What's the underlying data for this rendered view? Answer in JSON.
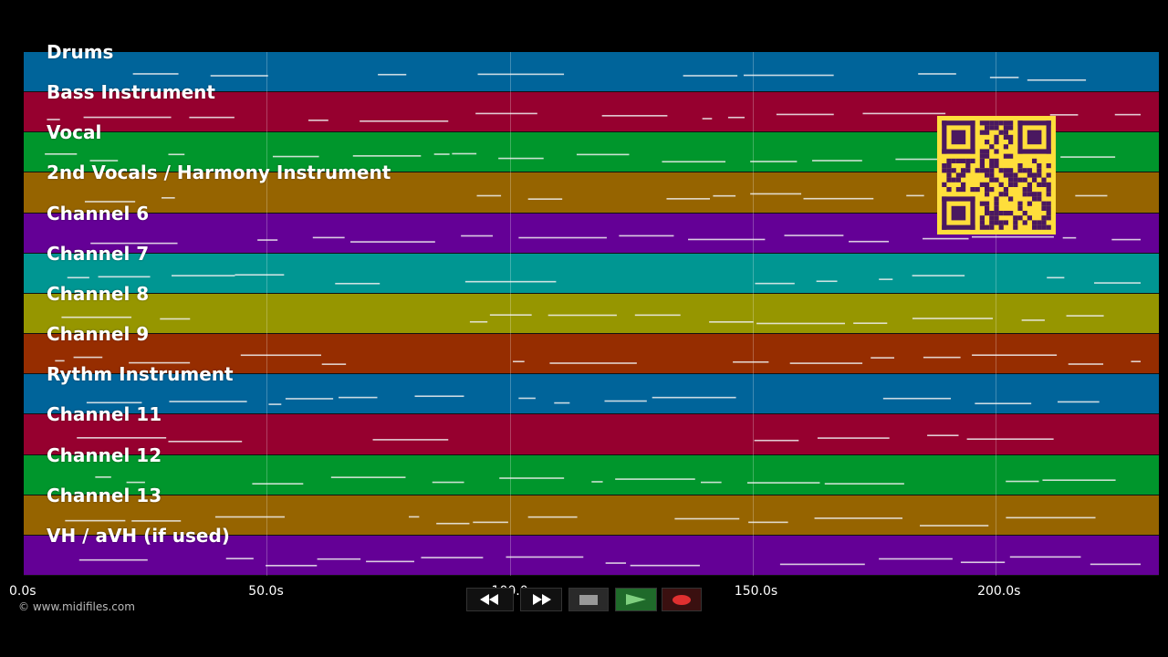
{
  "tracks": [
    {
      "label": "Drums",
      "color": "#00649a"
    },
    {
      "label": "Bass Instrument",
      "color": "#96002f"
    },
    {
      "label": "Vocal",
      "color": "#00962c"
    },
    {
      "label": "2nd Vocals / Harmony Instrument",
      "color": "#966400"
    },
    {
      "label": "Channel 6",
      "color": "#640096"
    },
    {
      "label": "Channel 7",
      "color": "#009692"
    },
    {
      "label": "Channel 8",
      "color": "#969600"
    },
    {
      "label": "Channel 9",
      "color": "#962d00"
    },
    {
      "label": "Rythm Instrument",
      "color": "#00649a"
    },
    {
      "label": "Channel 11",
      "color": "#96002f"
    },
    {
      "label": "Channel 12",
      "color": "#00962c"
    },
    {
      "label": "Channel 13",
      "color": "#966400"
    },
    {
      "label": "VH / aVH (if used)",
      "color": "#640096"
    }
  ],
  "timeline": {
    "ticks": [
      "0.0s",
      "50.0s",
      "100.0s",
      "150.0s",
      "200.0s"
    ],
    "tick_seconds": [
      0,
      50,
      100,
      150,
      200
    ],
    "total_seconds": 233.6
  },
  "credit": "© www.midifiles.com",
  "controls": {
    "rewind_icon": "rewind-icon",
    "fast_forward_icon": "fast-forward-icon",
    "stop_icon": "stop-icon",
    "play_icon": "play-icon",
    "record_icon": "record-icon"
  },
  "qr_icon": "qr-code-icon",
  "colors": {
    "background": "#000000",
    "note": "#f0f0f0",
    "qr": "#ffde3b",
    "qr_dark": "#4a1860"
  }
}
